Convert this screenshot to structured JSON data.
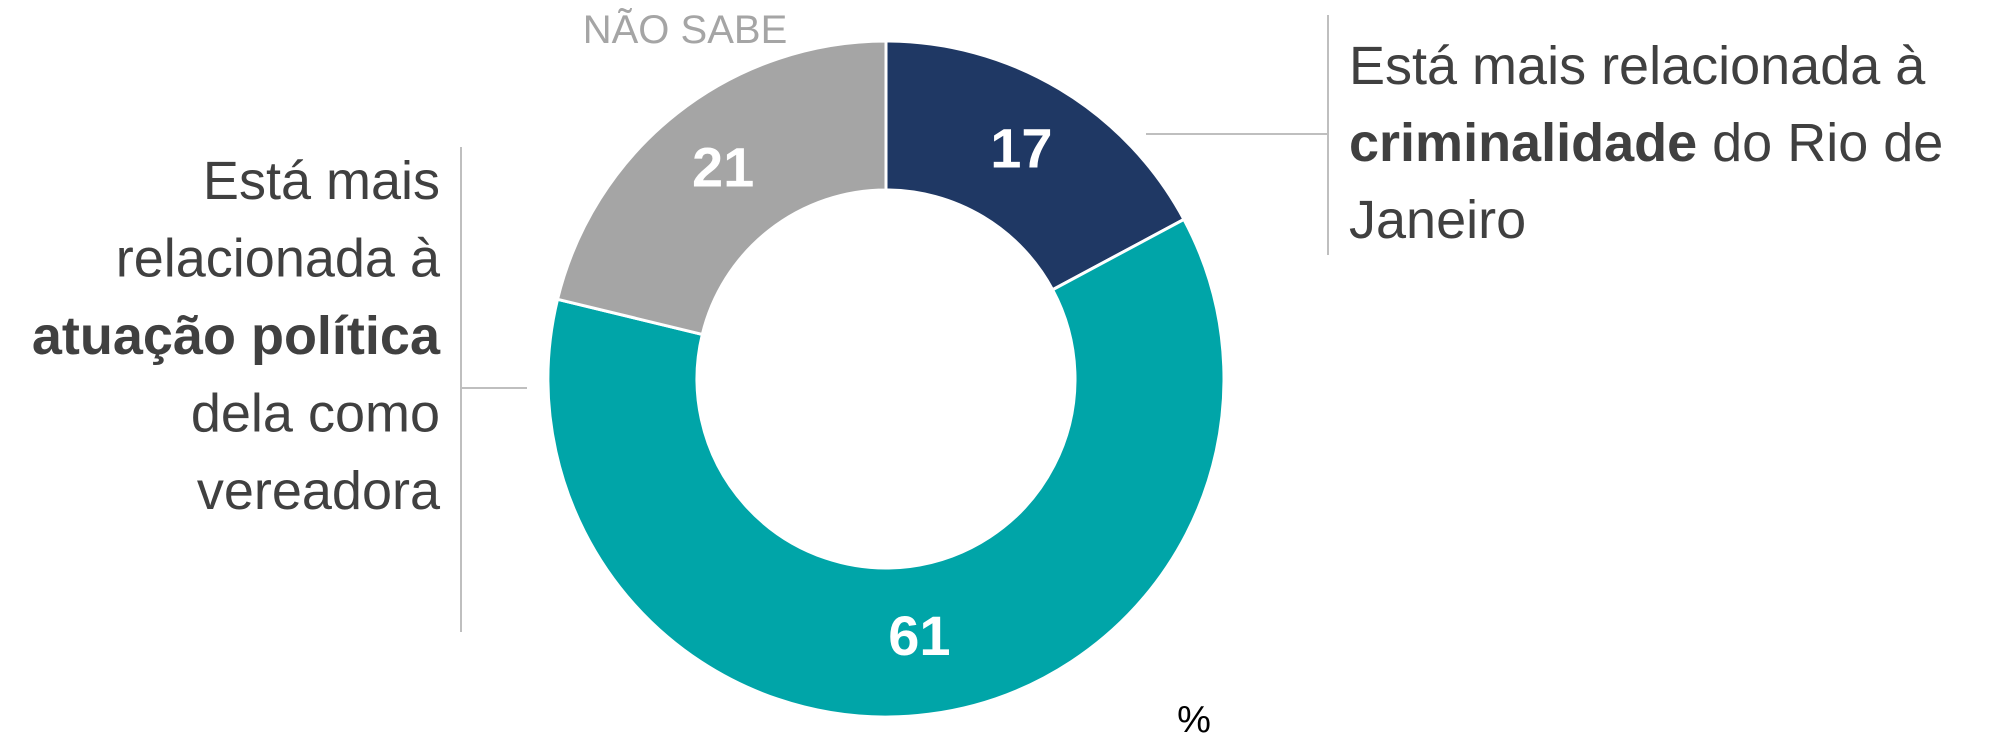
{
  "chart_data": {
    "type": "pie",
    "categories": [
      [
        [
          {
            "text": "Está mais relacionada à",
            "bold": false
          }
        ],
        [
          {
            "text": "criminalidade",
            "bold": true
          },
          {
            "text": " do Rio de",
            "bold": false
          }
        ],
        [
          {
            "text": "Janeiro",
            "bold": false
          }
        ]
      ],
      [
        [
          {
            "text": "Está mais",
            "bold": false
          }
        ],
        [
          {
            "text": "relacionada à",
            "bold": false
          }
        ],
        [
          {
            "text": "atuação política",
            "bold": true
          }
        ],
        [
          {
            "text": "dela como",
            "bold": false
          }
        ],
        [
          {
            "text": "vereadora",
            "bold": false
          }
        ]
      ],
      [
        [
          {
            "text": "NÃO SABE",
            "bold": false
          }
        ]
      ]
    ],
    "values": [
      17,
      61,
      21
    ],
    "colors": [
      "#1f3864",
      "#00a5a8",
      "#a5a5a5"
    ],
    "unit": "%"
  }
}
